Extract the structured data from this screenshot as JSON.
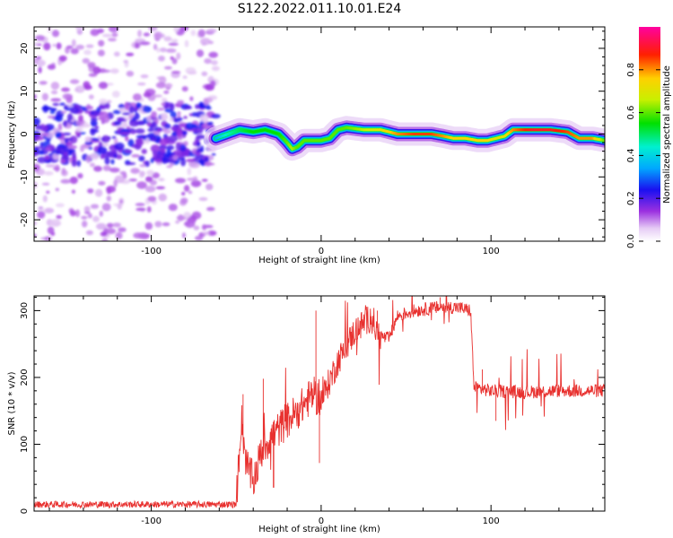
{
  "title": "S122.2022.011.10.01.E24",
  "chart_data": [
    {
      "type": "heatmap",
      "xlabel": "Height of straight line (km)",
      "ylabel": "Frequency (Hz)",
      "xlim": [
        -169,
        167
      ],
      "ylim": [
        -25,
        25
      ],
      "x_ticks": [
        -100,
        0,
        100
      ],
      "y_ticks": [
        -20,
        -10,
        0,
        10,
        20
      ],
      "colorbar": {
        "label": "Normalized spectral amplitude",
        "range": [
          0,
          1
        ],
        "ticks": [
          0.0,
          0.2,
          0.4,
          0.6,
          0.8
        ]
      },
      "noise_region_x": [
        -169,
        -62
      ],
      "ridge": {
        "x": [
          -62,
          -55,
          -48,
          -40,
          -33,
          -25,
          -20,
          -17,
          -14,
          -10,
          -5,
          0,
          5,
          10,
          15,
          25,
          35,
          45,
          55,
          65,
          72,
          78,
          85,
          92,
          98,
          103,
          108,
          113,
          118,
          125,
          135,
          145,
          152,
          160,
          167
        ],
        "freq": [
          -1,
          0,
          1,
          0.5,
          1,
          0,
          -2,
          -3.5,
          -3,
          -1.5,
          -1.5,
          -1.5,
          -1,
          1,
          1.5,
          1,
          1,
          0,
          0,
          0,
          -0.5,
          -1,
          -1,
          -1.5,
          -1.5,
          -1,
          -0.5,
          1,
          1,
          1,
          1,
          0.5,
          -1,
          -1,
          -1.5
        ],
        "amplitude": [
          0.35,
          0.45,
          0.5,
          0.55,
          0.55,
          0.55,
          0.6,
          0.65,
          0.6,
          0.6,
          0.6,
          0.6,
          0.6,
          0.6,
          0.6,
          0.65,
          0.7,
          0.8,
          0.85,
          0.85,
          0.8,
          0.75,
          0.75,
          0.75,
          0.75,
          0.7,
          0.7,
          0.8,
          0.85,
          0.9,
          0.9,
          0.85,
          0.8,
          0.8,
          0.6
        ]
      }
    },
    {
      "type": "line",
      "xlabel": "Height of straight line (km)",
      "ylabel": "SNR (10 * v/v)",
      "xlim": [
        -169,
        167
      ],
      "ylim": [
        0,
        322
      ],
      "x_ticks": [
        -100,
        0,
        100
      ],
      "y_ticks": [
        0,
        100,
        200,
        300
      ],
      "series": [
        {
          "color": "#e8312f",
          "trend_x": [
            -169,
            -100,
            -50,
            -47,
            -44,
            -40,
            -35,
            -30,
            -20,
            -10,
            -5,
            0,
            5,
            10,
            20,
            30,
            33,
            37,
            40,
            45,
            55,
            70,
            80,
            88,
            90,
            100,
            120,
            140,
            167
          ],
          "trend_y": [
            10,
            10,
            10,
            140,
            70,
            45,
            90,
            110,
            135,
            160,
            175,
            165,
            195,
            225,
            270,
            292,
            265,
            260,
            258,
            292,
            300,
            305,
            305,
            300,
            185,
            180,
            178,
            180,
            180
          ],
          "spikes": [
            {
              "x": -46,
              "y": 175
            },
            {
              "x": -34,
              "y": 198
            },
            {
              "x": -28,
              "y": 35
            },
            {
              "x": -3,
              "y": 300
            },
            {
              "x": -1,
              "y": 72
            },
            {
              "x": 95,
              "y": 212
            },
            {
              "x": 103,
              "y": 135
            },
            {
              "x": 33,
              "y": 300
            },
            {
              "x": 70,
              "y": 320
            }
          ]
        }
      ]
    }
  ]
}
